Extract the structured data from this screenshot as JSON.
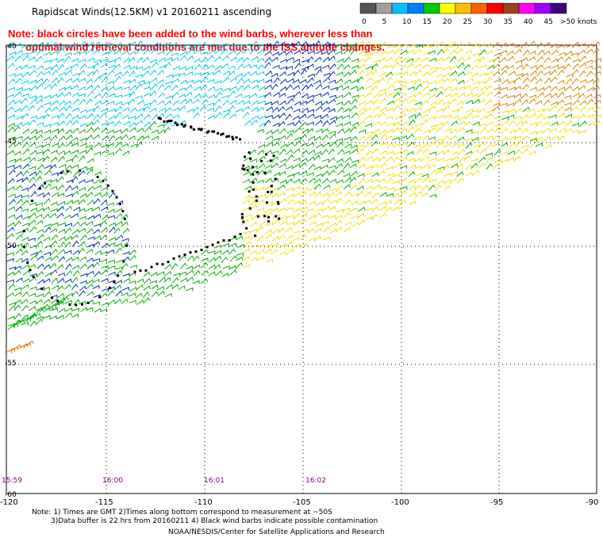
{
  "header": {
    "title": "Rapidscat Winds(12.5KM) v1 20160211 ascending"
  },
  "note": {
    "line1": "Note: black circles have been added to the wind barbs, wherever less than",
    "line2": "optimal wind retrieval conditions are met due to the ISS altitude changes."
  },
  "colorbar": {
    "unit_label": ">50 knots",
    "labels": [
      "0",
      "5",
      "10",
      "15",
      "20",
      "25",
      "30",
      "35",
      "40",
      "45"
    ],
    "colors": [
      "#555555",
      "#a0a0a0",
      "#00c0ff",
      "#0080ff",
      "#00cc00",
      "#ffff00",
      "#ffc000",
      "#ff6000",
      "#ff0000",
      "#a04020",
      "#ff00ff",
      "#a000ff",
      "#400080"
    ]
  },
  "axes": {
    "lat_labels": [
      "-40",
      "-45",
      "-50",
      "-55",
      "-60"
    ],
    "lon_labels": [
      "-120",
      "-115",
      "-110",
      "-105",
      "-100",
      "-95",
      "-90"
    ]
  },
  "times": [
    "15:59",
    "16:00",
    "16:01",
    "16:02"
  ],
  "footer": {
    "line1": "Note: 1) Times are GMT 2)Times along bottom correspond to measurement at ~50S",
    "line2": "3)Data buffer is 22 hrs from 20160211 4) Black wind barbs indicate possible contamination",
    "line3": "NOAA/NESDIS/Center for Satellite Applications and Research"
  },
  "palette": {
    "cyan": "#00c8e8",
    "blue": "#0030c0",
    "green": "#00b000",
    "yellow": "#f0e000",
    "orange": "#e08000",
    "black": "#000000"
  }
}
